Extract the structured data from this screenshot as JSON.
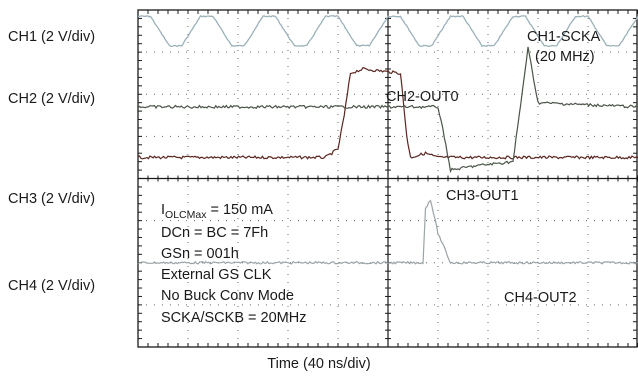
{
  "channels": [
    {
      "label": "CH1 (2 V/div)"
    },
    {
      "label": "CH2 (2 V/div)"
    },
    {
      "label": "CH3 (2 V/div)"
    },
    {
      "label": "CH4 (2 V/div)"
    }
  ],
  "xlabel": "Time (40 ns/div)",
  "colors": {
    "grid": "#1a1a1a",
    "ch1": "#9bb1b9",
    "ch2": "#5a2620",
    "ch3": "#9aa3a6",
    "ch4": "#4a5448"
  },
  "annotations": {
    "ch1_name": "CH1-SCKA",
    "ch1_freq": "(20 MHz)",
    "ch2_name": "CH2-OUT0",
    "ch3_name": "CH3-OUT1",
    "ch4_name": "CH4-OUT2"
  },
  "conditions": {
    "iolc_main": "I",
    "iolc_sub": "OLCMax",
    "iolc_value": " = 150 mA",
    "dcn": "DCn = BC = 7Fh",
    "gsn": "GSn = 001h",
    "clk": "External GS CLK",
    "buck": "No Buck Conv Mode",
    "scka": "SCKA/SCKB = 20MHz"
  },
  "chart_data": {
    "type": "line",
    "title": "",
    "xlabel": "Time (40 ns/div)",
    "x_divisions": 10,
    "y_divisions": 8,
    "x_unit": "ns",
    "xlim": [
      0,
      400
    ],
    "series": [
      {
        "name": "CH1-SCKA",
        "scale": "2 V/div",
        "frequency": "20 MHz",
        "x": [
          0,
          10,
          25,
          35,
          50,
          60,
          75,
          85,
          100,
          110,
          125,
          135,
          150,
          160,
          175,
          185,
          200,
          210,
          225,
          235,
          250,
          260,
          275,
          285,
          300,
          310,
          325,
          335,
          350,
          360,
          375,
          385,
          400
        ],
        "y": [
          0.15,
          0.15,
          0.85,
          0.85,
          0.15,
          0.15,
          0.85,
          0.85,
          0.15,
          0.15,
          0.85,
          0.85,
          0.15,
          0.15,
          0.85,
          0.85,
          0.15,
          0.15,
          0.85,
          0.85,
          0.15,
          0.15,
          0.85,
          0.85,
          0.15,
          0.15,
          0.85,
          0.85,
          0.15,
          0.15,
          0.85,
          0.85,
          0.15
        ],
        "y_unit": "div"
      },
      {
        "name": "CH2-OUT0",
        "scale": "2 V/div",
        "x": [
          0,
          150,
          160,
          165,
          170,
          180,
          210,
          215,
          218,
          230,
          240,
          260,
          300,
          400
        ],
        "y": [
          3.5,
          3.5,
          3.3,
          2.5,
          1.5,
          1.4,
          1.5,
          3.0,
          3.5,
          3.4,
          3.5,
          3.5,
          3.5,
          3.5
        ],
        "y_unit": "div"
      },
      {
        "name": "CH3-OUT1",
        "scale": "2 V/div",
        "x": [
          0,
          100,
          200,
          228,
          230,
          234,
          240,
          250,
          400
        ],
        "y": [
          6.0,
          6.0,
          6.0,
          6.0,
          4.7,
          4.5,
          5.3,
          6.0,
          6.0
        ],
        "y_unit": "div"
      },
      {
        "name": "CH4-OUT2",
        "scale": "2 V/div",
        "x": [
          0,
          200,
          240,
          245,
          250,
          270,
          300,
          305,
          312,
          320,
          400
        ],
        "y": [
          2.3,
          2.3,
          2.3,
          3.0,
          3.8,
          3.7,
          3.6,
          2.5,
          0.9,
          2.2,
          2.3
        ],
        "y_unit": "div"
      }
    ],
    "grid": true,
    "legend": "annotations"
  }
}
